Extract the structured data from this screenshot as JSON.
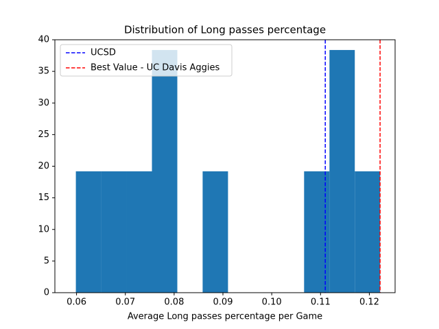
{
  "chart_data": {
    "type": "histogram",
    "title": "Distribution of Long passes percentage",
    "x_label": "Average Long passes percentage per Game",
    "bins": [
      0.05986,
      0.06506,
      0.07025,
      0.07545,
      0.08065,
      0.08584,
      0.09104,
      0.09624,
      0.10143,
      0.10663,
      0.11183,
      0.11702,
      0.12222
    ],
    "values": [
      19.19,
      19.19,
      19.19,
      38.38,
      0,
      19.19,
      0,
      0,
      0,
      19.19,
      38.38,
      19.19
    ],
    "color": "#1f77b4",
    "vlines": [
      {
        "name": "UCSD",
        "color": "#0000ff",
        "value": 0.11097
      },
      {
        "name": "Best Value - UC Davis Aggies",
        "color": "#ff0000",
        "value": 0.1222
      }
    ],
    "legend": "upper left",
    "xlim": [
      0.05556,
      0.12528
    ],
    "ylim": [
      0,
      40
    ],
    "xticks": [
      0.06,
      0.07,
      0.08,
      0.09,
      {
        "value": 0.1,
        "label": "0.10"
      },
      0.11,
      0.12
    ],
    "yticks": [
      0,
      5,
      10,
      15,
      20,
      25,
      30,
      35,
      40
    ]
  }
}
